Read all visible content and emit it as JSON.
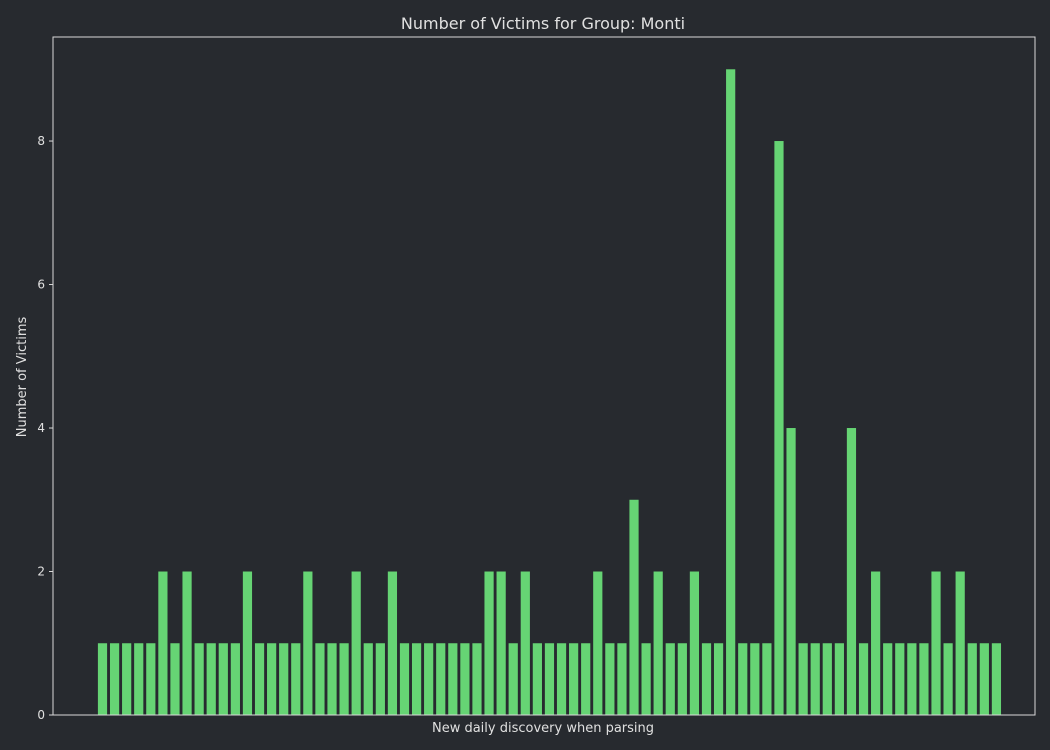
{
  "chart_data": {
    "type": "bar",
    "title": "Number of Victims for Group: Monti",
    "xlabel": "New daily discovery when parsing",
    "ylabel": "Number of Victims",
    "ylim": [
      0,
      9.45
    ],
    "yticks": [
      "0",
      "2",
      "4",
      "6",
      "8"
    ],
    "grid": false,
    "legend": "none",
    "bar_color": "#66d474",
    "background": "#272a2f",
    "frame_color": "#d8d8d8",
    "values": [
      1,
      1,
      1,
      1,
      1,
      2,
      1,
      2,
      1,
      1,
      1,
      1,
      2,
      1,
      1,
      1,
      1,
      2,
      1,
      1,
      1,
      2,
      1,
      1,
      2,
      1,
      1,
      1,
      1,
      1,
      1,
      1,
      2,
      2,
      1,
      2,
      1,
      1,
      1,
      1,
      1,
      2,
      1,
      1,
      3,
      1,
      2,
      1,
      1,
      2,
      1,
      1,
      9,
      1,
      1,
      1,
      8,
      4,
      1,
      1,
      1,
      1,
      4,
      1,
      2,
      1,
      1,
      1,
      1,
      2,
      1,
      2,
      1,
      1,
      1
    ]
  }
}
